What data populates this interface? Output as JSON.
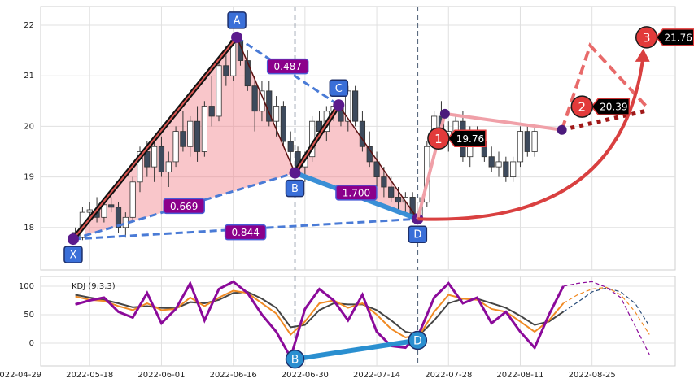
{
  "chart_data": [
    {
      "type": "candlestick",
      "xlim": [
        3.17,
        91.6
      ],
      "ylim": [
        17.16,
        22.37
      ],
      "yticks": [
        18,
        19,
        20,
        21,
        22
      ],
      "grid": true,
      "up_color": "#ffffff",
      "down_color": "#3d4a5c",
      "x": [
        8,
        9,
        10,
        11,
        12,
        13,
        14,
        15,
        16,
        17,
        18,
        19,
        20,
        21,
        22,
        23,
        24,
        25,
        26,
        27,
        28,
        29,
        30,
        31,
        32,
        33,
        34,
        35,
        36,
        37,
        38,
        39,
        40,
        41,
        42,
        43,
        44,
        45,
        46,
        47,
        48,
        49,
        50,
        51,
        52,
        53,
        54,
        55,
        56,
        57,
        58,
        59,
        60,
        61,
        62,
        63,
        64,
        65,
        66,
        67,
        68,
        69,
        70,
        71,
        72
      ],
      "open": [
        17.9,
        17.8,
        18.3,
        18.35,
        18.2,
        18.45,
        18.4,
        18.0,
        18.2,
        18.9,
        19.5,
        19.2,
        19.6,
        19.1,
        19.3,
        19.9,
        19.6,
        20.1,
        19.5,
        20.4,
        20.2,
        21.2,
        21.0,
        21.7,
        21.3,
        20.8,
        20.3,
        20.7,
        20.1,
        20.4,
        19.7,
        19.5,
        19.2,
        19.4,
        20.1,
        19.9,
        20.3,
        20.4,
        20.1,
        20.7,
        20.1,
        19.6,
        19.3,
        19.0,
        18.8,
        18.6,
        18.5,
        18.6,
        18.2,
        18.5,
        19.6,
        20.2,
        19.8,
        19.9,
        20.1,
        19.4,
        19.9,
        19.7,
        19.4,
        19.2,
        19.3,
        19.0,
        19.3,
        19.9,
        19.5
      ],
      "high": [
        18.0,
        18.4,
        18.5,
        18.6,
        18.5,
        18.6,
        18.5,
        18.3,
        19.0,
        19.6,
        19.7,
        19.7,
        19.8,
        19.5,
        20.0,
        20.3,
        20.2,
        20.4,
        20.5,
        21.0,
        21.3,
        21.6,
        21.8,
        21.8,
        21.5,
        21.0,
        20.9,
        20.9,
        20.6,
        20.5,
        19.9,
        19.6,
        19.5,
        20.2,
        20.3,
        20.4,
        20.5,
        20.5,
        20.8,
        20.8,
        20.3,
        19.9,
        19.5,
        19.2,
        19.0,
        18.8,
        18.7,
        18.7,
        18.6,
        19.7,
        20.3,
        20.5,
        20.1,
        20.2,
        20.3,
        20.0,
        20.0,
        19.9,
        19.6,
        19.5,
        19.4,
        19.4,
        20.0,
        20.0,
        20.0
      ],
      "low": [
        17.7,
        17.75,
        18.2,
        18.1,
        18.1,
        18.3,
        17.9,
        17.8,
        18.1,
        18.7,
        19.0,
        18.9,
        19.0,
        18.8,
        19.2,
        19.5,
        19.4,
        19.3,
        19.4,
        20.0,
        20.1,
        20.8,
        20.9,
        21.2,
        20.7,
        19.9,
        20.1,
        20.0,
        19.8,
        19.6,
        19.3,
        19.0,
        18.9,
        19.3,
        19.8,
        19.7,
        20.1,
        20.0,
        19.9,
        20.0,
        19.5,
        19.2,
        18.8,
        18.6,
        18.5,
        18.3,
        18.3,
        18.1,
        18.1,
        18.4,
        19.4,
        19.7,
        19.5,
        19.6,
        19.3,
        19.2,
        19.6,
        19.3,
        19.1,
        19.0,
        18.9,
        18.9,
        19.2,
        19.4,
        19.4
      ],
      "close": [
        17.8,
        18.3,
        18.35,
        18.2,
        18.45,
        18.4,
        18.0,
        18.2,
        18.9,
        19.5,
        19.2,
        19.6,
        19.1,
        19.3,
        19.9,
        19.6,
        20.1,
        19.5,
        20.4,
        20.2,
        21.2,
        21.0,
        21.7,
        21.3,
        20.8,
        20.3,
        20.7,
        20.1,
        20.4,
        19.7,
        19.5,
        19.2,
        19.4,
        20.1,
        19.9,
        20.3,
        20.4,
        20.1,
        20.7,
        20.1,
        19.6,
        19.3,
        19.0,
        18.8,
        18.6,
        18.5,
        18.6,
        18.2,
        18.5,
        19.6,
        20.2,
        19.8,
        19.9,
        20.1,
        19.4,
        19.9,
        19.7,
        19.4,
        19.2,
        19.3,
        19.0,
        19.3,
        19.9,
        19.5,
        19.9
      ],
      "pattern": [
        {
          "label": "X",
          "x": 7.7,
          "value": 17.77
        },
        {
          "label": "A",
          "x": 30.5,
          "value": 21.76
        },
        {
          "label": "B",
          "x": 38.6,
          "value": 19.08
        },
        {
          "label": "C",
          "x": 44.7,
          "value": 20.42
        },
        {
          "label": "D",
          "x": 55.7,
          "value": 18.17
        }
      ],
      "ratios": [
        0.487,
        0.669,
        0.844,
        {
          "value": 1.7,
          "label": "1.700"
        }
      ],
      "pivots": [
        {
          "x": 59.5,
          "value": 20.25
        },
        {
          "x": 75.8,
          "value": 19.93
        }
      ],
      "targets": [
        {
          "label": "1",
          "x": 58.6,
          "value": 19.76
        },
        {
          "label": "2",
          "x": 78.6,
          "value": 20.39
        },
        {
          "label": "3",
          "x": 87.6,
          "value": 21.76
        }
      ]
    },
    {
      "type": "line",
      "title": "KDJ (9,3,3)",
      "xlim": [
        3.17,
        91.6
      ],
      "ylim": [
        -40,
        117.1
      ],
      "yticks": [
        0,
        50,
        100
      ],
      "grid": true,
      "xticks": [
        {
          "value": 0,
          "label": "2022-04-29"
        },
        {
          "value": 10,
          "label": "2022-05-18"
        },
        {
          "value": 20,
          "label": "2022-06-01"
        },
        {
          "value": 30,
          "label": "2022-06-16"
        },
        {
          "value": 40,
          "label": "2022-06-30"
        },
        {
          "value": 50,
          "label": "2022-07-14"
        },
        {
          "value": 60,
          "label": "2022-07-28"
        },
        {
          "value": 70,
          "label": "2022-08-11"
        },
        {
          "value": 80,
          "label": "2022-08-25"
        }
      ],
      "series": [
        {
          "color": "#444444",
          "x": [
            8,
            10,
            12,
            14,
            16,
            18,
            20,
            22,
            24,
            26,
            28,
            30,
            32,
            34,
            36,
            38,
            40,
            42,
            44,
            46,
            48,
            50,
            52,
            54,
            56,
            58,
            60,
            62,
            64,
            66,
            68,
            70,
            72,
            74,
            76
          ],
          "values": [
            85,
            80,
            76,
            70,
            63,
            65,
            62,
            61,
            72,
            70,
            76,
            88,
            90,
            78,
            62,
            28,
            32,
            58,
            70,
            68,
            68,
            58,
            40,
            20,
            15,
            40,
            70,
            78,
            78,
            70,
            62,
            48,
            32,
            38,
            55
          ]
        },
        {
          "color": "#f08a24",
          "x": [
            8,
            10,
            12,
            14,
            16,
            18,
            20,
            22,
            24,
            26,
            28,
            30,
            32,
            34,
            36,
            38,
            40,
            42,
            44,
            46,
            48,
            50,
            52,
            54,
            56,
            58,
            60,
            62,
            64,
            66,
            68,
            70,
            72,
            74,
            76
          ],
          "values": [
            82,
            76,
            74,
            65,
            58,
            70,
            58,
            60,
            80,
            65,
            80,
            92,
            88,
            70,
            52,
            15,
            38,
            70,
            75,
            62,
            70,
            50,
            25,
            10,
            15,
            55,
            85,
            78,
            76,
            60,
            55,
            38,
            20,
            40,
            70
          ]
        },
        {
          "color": "#8b0a9a",
          "width": 3,
          "x": [
            8,
            10,
            12,
            14,
            16,
            18,
            20,
            22,
            24,
            26,
            28,
            30,
            32,
            34,
            36,
            38,
            40,
            42,
            44,
            46,
            48,
            50,
            52,
            54,
            56,
            58,
            60,
            62,
            64,
            66,
            68,
            70,
            72,
            74,
            76
          ],
          "values": [
            68,
            75,
            80,
            55,
            45,
            88,
            35,
            60,
            105,
            40,
            95,
            108,
            88,
            50,
            20,
            -25,
            60,
            95,
            75,
            40,
            85,
            20,
            -5,
            -8,
            20,
            80,
            105,
            70,
            80,
            35,
            55,
            20,
            -8,
            50,
            100
          ]
        },
        {
          "color": "#2a4d7a",
          "dashed": true,
          "x": [
            76,
            78,
            80,
            82,
            84,
            86,
            88
          ],
          "values": [
            55,
            72,
            90,
            97,
            90,
            70,
            30
          ]
        },
        {
          "color": "#f08a24",
          "dashed": true,
          "x": [
            76,
            78,
            80,
            82,
            84,
            86,
            88
          ],
          "values": [
            70,
            85,
            95,
            98,
            85,
            55,
            15
          ]
        },
        {
          "color": "#8b0a9a",
          "dashed": true,
          "x": [
            76,
            78,
            80,
            82,
            84,
            86,
            88
          ],
          "values": [
            100,
            105,
            108,
            98,
            80,
            30,
            -20
          ]
        }
      ],
      "markers": [
        {
          "label": "B",
          "x": 38.6,
          "value": -28
        },
        {
          "label": "D",
          "x": 55.7,
          "value": 5
        }
      ]
    }
  ]
}
